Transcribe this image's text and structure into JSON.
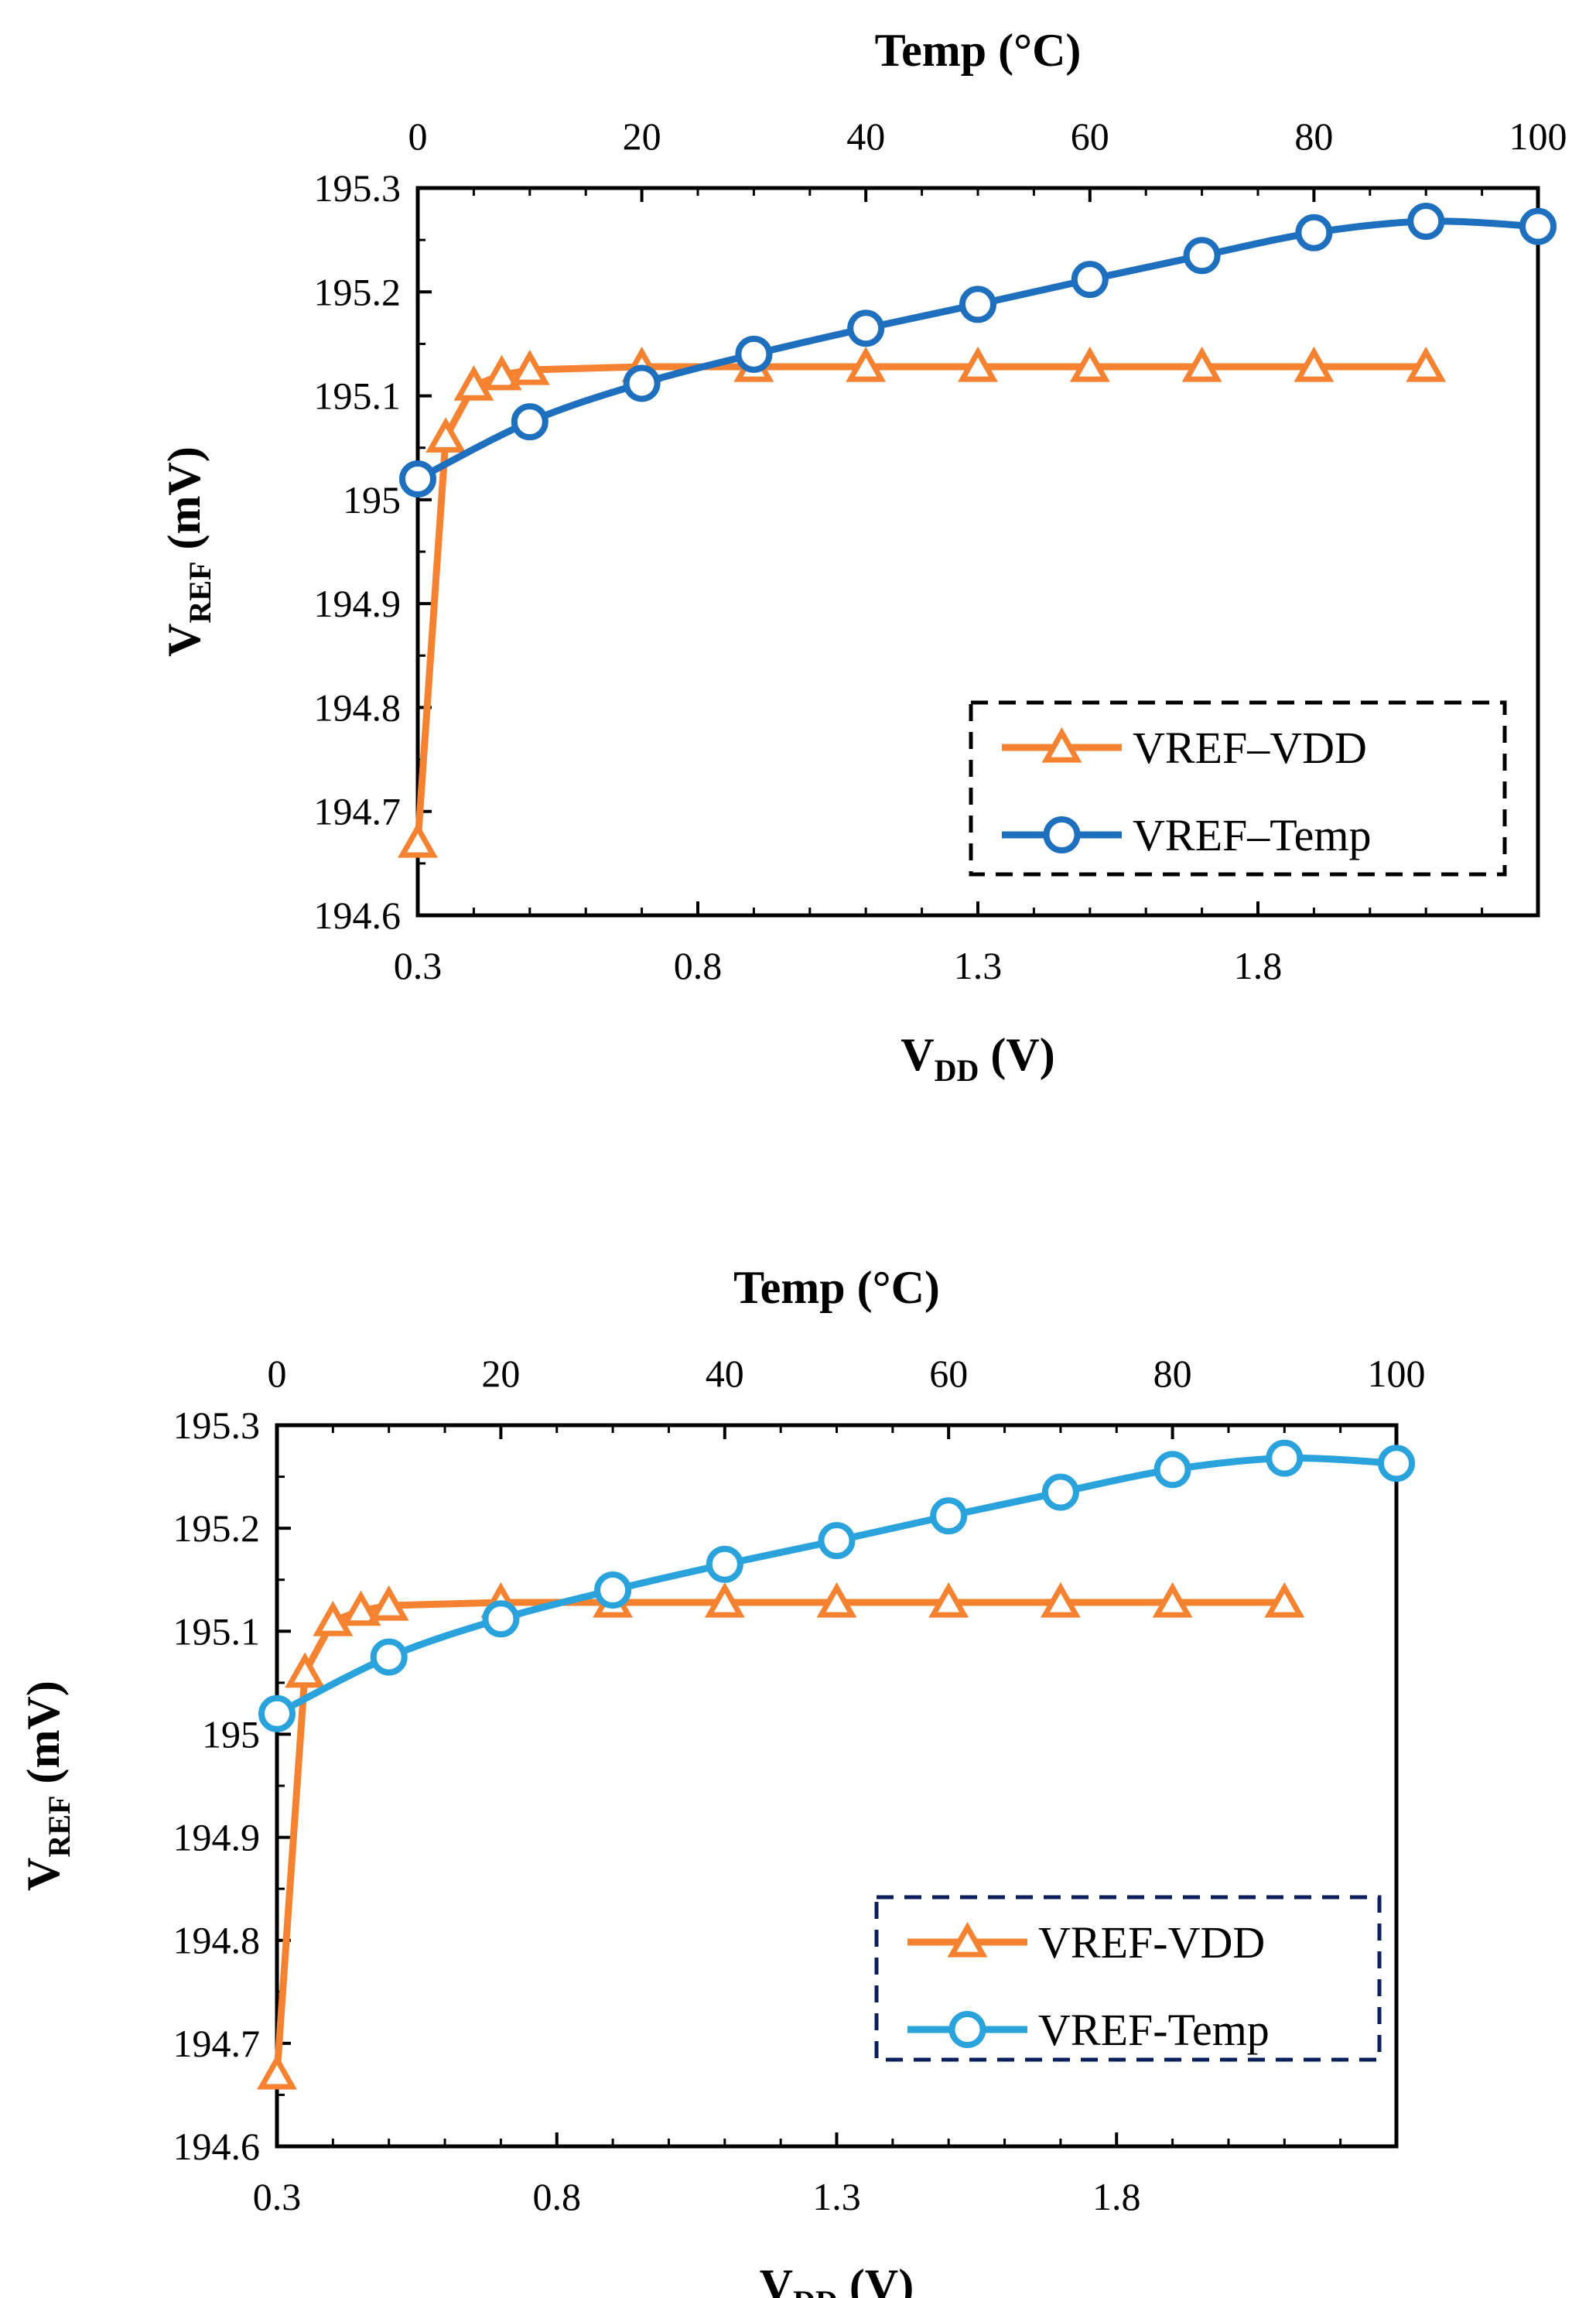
{
  "chart_data": [
    {
      "type": "line",
      "id": "top",
      "top_axis": {
        "label": "Temp (°C)",
        "range": [
          0,
          100
        ],
        "ticks": [
          0,
          20,
          40,
          60,
          80,
          100
        ]
      },
      "x_axis": {
        "label_main": "V",
        "label_sub": "DD",
        "label_tail": " (V)",
        "range": [
          0.3,
          2.3
        ],
        "ticks": [
          "0.3",
          "0.8",
          "1.3",
          "1.8"
        ],
        "tick_values": [
          0.3,
          0.8,
          1.3,
          1.8
        ]
      },
      "y_axis": {
        "label_main": "V",
        "label_sub": "REF",
        "label_tail": " (mV)",
        "range": [
          194.6,
          195.3
        ],
        "ticks": [
          "194.6",
          "194.7",
          "194.8",
          "194.9",
          "195",
          "195.1",
          "195.2",
          "195.3"
        ],
        "tick_values": [
          194.6,
          194.7,
          194.8,
          194.9,
          195.0,
          195.1,
          195.2,
          195.3
        ]
      },
      "series": [
        {
          "name": "VREF–VDD",
          "marker": "triangle",
          "color": "#f58231",
          "axis": "bottom",
          "x": [
            0.3,
            0.35,
            0.4,
            0.45,
            0.5,
            0.7,
            0.9,
            1.1,
            1.3,
            1.5,
            1.7,
            1.9,
            2.1
          ],
          "values": [
            194.67,
            195.06,
            195.11,
            195.12,
            195.125,
            195.128,
            195.128,
            195.128,
            195.128,
            195.128,
            195.128,
            195.128,
            195.128
          ]
        },
        {
          "name": "VREF–Temp",
          "marker": "circle",
          "color": "#1f6fbf",
          "axis": "top",
          "x": [
            0,
            10,
            20,
            30,
            40,
            50,
            60,
            70,
            80,
            90,
            100
          ],
          "values": [
            195.02,
            195.075,
            195.112,
            195.14,
            195.165,
            195.188,
            195.212,
            195.235,
            195.257,
            195.268,
            195.263
          ]
        }
      ],
      "legend": {
        "position": "bottom-right",
        "border_color": "#000000"
      }
    },
    {
      "type": "line",
      "id": "bottom",
      "top_axis": {
        "label": "Temp (°C)",
        "range": [
          0,
          100
        ],
        "ticks": [
          0,
          20,
          40,
          60,
          80,
          100
        ]
      },
      "x_axis": {
        "label_main": "V",
        "label_sub": "DD",
        "label_tail": " (V)",
        "range": [
          0.3,
          2.3
        ],
        "ticks": [
          "0.3",
          "0.8",
          "1.3",
          "1.8"
        ],
        "tick_values": [
          0.3,
          0.8,
          1.3,
          1.8
        ]
      },
      "y_axis": {
        "label_main": "V",
        "label_sub": "REF",
        "label_tail": " (mV)",
        "range": [
          194.6,
          195.3
        ],
        "ticks": [
          "194.6",
          "194.7",
          "194.8",
          "194.9",
          "195",
          "195.1",
          "195.2",
          "195.3"
        ],
        "tick_values": [
          194.6,
          194.7,
          194.8,
          194.9,
          195.0,
          195.1,
          195.2,
          195.3
        ]
      },
      "series": [
        {
          "name": "VREF-VDD",
          "marker": "triangle",
          "color": "#f58231",
          "axis": "bottom",
          "x": [
            0.3,
            0.35,
            0.4,
            0.45,
            0.5,
            0.7,
            0.9,
            1.1,
            1.3,
            1.5,
            1.7,
            1.9,
            2.1
          ],
          "values": [
            194.67,
            195.06,
            195.11,
            195.12,
            195.125,
            195.128,
            195.128,
            195.128,
            195.128,
            195.128,
            195.128,
            195.128,
            195.128
          ]
        },
        {
          "name": "VREF-Temp",
          "marker": "circle",
          "color": "#2aa3dd",
          "axis": "top",
          "x": [
            0,
            10,
            20,
            30,
            40,
            50,
            60,
            70,
            80,
            90,
            100
          ],
          "values": [
            195.02,
            195.075,
            195.112,
            195.14,
            195.165,
            195.188,
            195.212,
            195.235,
            195.257,
            195.268,
            195.263
          ]
        }
      ],
      "legend": {
        "position": "bottom-right",
        "border_color": "#0b1f5c"
      }
    }
  ]
}
